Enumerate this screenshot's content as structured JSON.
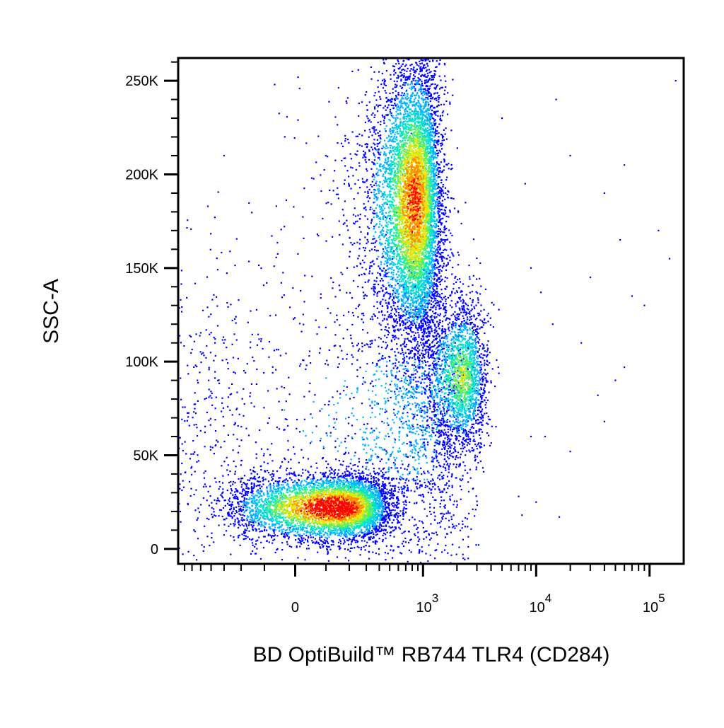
{
  "chart_data": {
    "type": "scatter",
    "subtype": "flow-cytometry-pseudocolor-dot-plot",
    "title": "",
    "xlabel": "BD OptiBuild™ RB744 TLR4 (CD284)",
    "ylabel": "SSC-A",
    "x_scale": "biexponential",
    "xlim": [
      -800,
      200000
    ],
    "ylim": [
      -8000,
      262144
    ],
    "y_ticks": [
      {
        "value": 0,
        "label": "0"
      },
      {
        "value": 50000,
        "label": "50K"
      },
      {
        "value": 100000,
        "label": "100K"
      },
      {
        "value": 150000,
        "label": "150K"
      },
      {
        "value": 200000,
        "label": "200K"
      },
      {
        "value": 250000,
        "label": "250K"
      }
    ],
    "x_ticks": [
      {
        "value": 0,
        "base": "0",
        "exp": ""
      },
      {
        "value": 1000,
        "base": "10",
        "exp": "3"
      },
      {
        "value": 10000,
        "base": "10",
        "exp": "4"
      },
      {
        "value": 100000,
        "base": "10",
        "exp": "5"
      }
    ],
    "grid": false,
    "legend": "none",
    "color_scale": [
      "#0000ff",
      "#00b4ff",
      "#00e6c8",
      "#64f050",
      "#f0e600",
      "#ff8c00",
      "#ff0000"
    ],
    "populations": [
      {
        "x_center": 130,
        "y_center": 22000,
        "x_spread": 180,
        "y_spread": 9000,
        "n": 5200,
        "peak_density": 1.0
      },
      {
        "x_center": 850,
        "y_center": 185000,
        "x_spread": 300,
        "y_spread": 38000,
        "n": 7200,
        "peak_density": 0.85
      },
      {
        "x_center": 2200,
        "y_center": 92000,
        "x_spread": 700,
        "y_spread": 20000,
        "n": 2000,
        "peak_density": 0.55
      },
      {
        "x_center": 700,
        "y_center": 70000,
        "x_spread": 900,
        "y_spread": 45000,
        "n": 2400,
        "peak_density": 0.2
      }
    ],
    "sparse_events": [
      {
        "x": 5000,
        "y": 230000
      },
      {
        "x": 8000,
        "y": 195000
      },
      {
        "x": 15000,
        "y": 240000
      },
      {
        "x": 20000,
        "y": 210000
      },
      {
        "x": 40000,
        "y": 190000
      },
      {
        "x": 60000,
        "y": 205000
      },
      {
        "x": 55000,
        "y": 165000
      },
      {
        "x": 120000,
        "y": 170000
      },
      {
        "x": 150000,
        "y": 155000
      },
      {
        "x": 30000,
        "y": 145000
      },
      {
        "x": 70000,
        "y": 135000
      },
      {
        "x": 90000,
        "y": 130000
      },
      {
        "x": 14000,
        "y": 120000
      },
      {
        "x": 25000,
        "y": 110000
      },
      {
        "x": 50000,
        "y": 90000
      },
      {
        "x": 35000,
        "y": 82000
      },
      {
        "x": 40000,
        "y": 68000
      },
      {
        "x": 9000,
        "y": 60000
      },
      {
        "x": 12000,
        "y": 60000
      },
      {
        "x": 20000,
        "y": 52000
      },
      {
        "x": 7000,
        "y": 28000
      },
      {
        "x": 7500,
        "y": 18000
      },
      {
        "x": 10000,
        "y": 25000
      },
      {
        "x": 16000,
        "y": 17000
      },
      {
        "x": 60000,
        "y": 97000
      },
      {
        "x": 9000,
        "y": 150000
      },
      {
        "x": 11000,
        "y": 137000
      },
      {
        "x": -300,
        "y": 210000
      },
      {
        "x": -120,
        "y": 112000
      },
      {
        "x": -250,
        "y": 88000
      },
      {
        "x": -130,
        "y": 88000
      },
      {
        "x": 70,
        "y": 168000
      },
      {
        "x": 170000,
        "y": 250000
      }
    ],
    "total_events_drawn": 16800
  }
}
